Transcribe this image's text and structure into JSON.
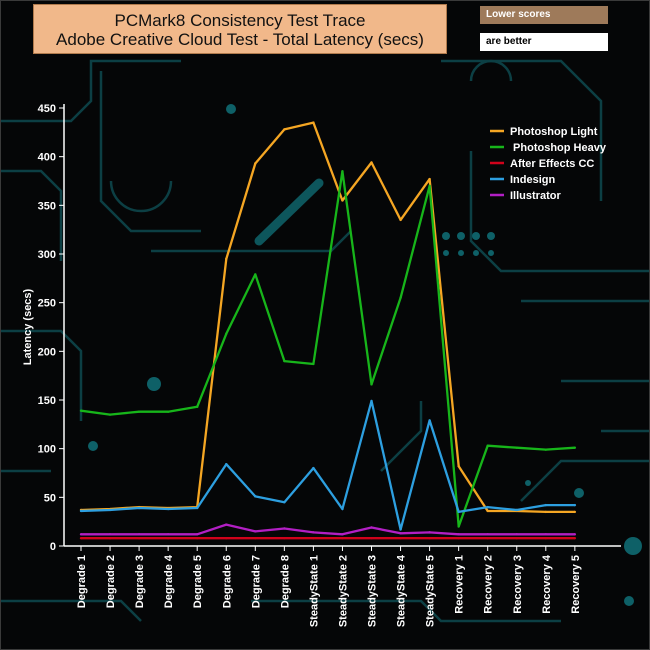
{
  "title_line1": "PCMark8 Consistency Test Trace",
  "title_line2": "Adobe Creative Cloud Test -  Total Latency (secs)",
  "note_line1": "Lower scores",
  "note_line2": "are better",
  "colors": {
    "background": "#050607",
    "axis": "#ffffff",
    "title_box": "#f1b88a"
  },
  "chart_data": {
    "type": "line",
    "title": "PCMark8 Consistency Test Trace\nAdobe Creative Cloud Test -  Total Latency (secs)",
    "xlabel": "",
    "ylabel": "Latency (secs)",
    "ylim": [
      0,
      450
    ],
    "yticks": [
      0,
      50,
      100,
      150,
      200,
      250,
      300,
      350,
      400,
      450
    ],
    "grid": false,
    "legend_position": "top-right",
    "categories": [
      "Degrade 1",
      "Degrade 2",
      "Degrade 3",
      "Degrade 4",
      "Degrade 5",
      "Degrade 6",
      "Degrade 7",
      "Degrade 8",
      "SteadyState 1",
      "SteadyState 2",
      "SteadyState 3",
      "SteadyState 4",
      "SteadyState 5",
      "Recovery 1",
      "Recovery 2",
      "Recovery 3",
      "Recovery 4",
      "Recovery 5"
    ],
    "series": [
      {
        "name": "Photoshop Light",
        "color": "#f5a623",
        "values": [
          37,
          38,
          40,
          39,
          40,
          295,
          393,
          428,
          435,
          355,
          394,
          335,
          377,
          82,
          36,
          36,
          35,
          35
        ]
      },
      {
        "name": " Photoshop Heavy",
        "color": "#17b51a",
        "values": [
          139,
          135,
          138,
          138,
          143,
          218,
          279,
          190,
          187,
          385,
          166,
          255,
          370,
          20,
          103,
          101,
          99,
          101
        ]
      },
      {
        "name": "After Effects CC",
        "color": "#d0021b",
        "values": [
          8,
          8,
          8,
          8,
          8,
          8,
          8,
          8,
          8,
          8,
          8,
          8,
          8,
          8,
          8,
          8,
          8,
          8
        ]
      },
      {
        "name": "Indesign",
        "color": "#2d9fe0",
        "values": [
          36,
          37,
          39,
          38,
          39,
          84,
          51,
          45,
          80,
          38,
          149,
          17,
          129,
          35,
          40,
          37,
          42,
          42
        ]
      },
      {
        "name": "Illustrator",
        "color": "#b21fc4",
        "values": [
          12,
          12,
          12,
          12,
          12,
          22,
          15,
          18,
          14,
          12,
          19,
          13,
          14,
          12,
          12,
          12,
          12,
          12
        ]
      }
    ]
  }
}
